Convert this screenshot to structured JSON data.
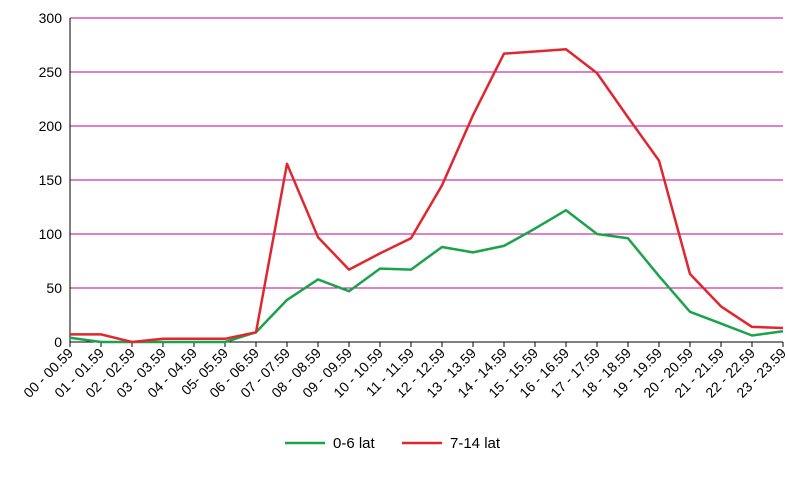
{
  "chart_data": {
    "type": "line",
    "categories": [
      "00 - 00.59",
      "01 - 01.59",
      "02 - 02.59",
      "03 - 03.59",
      "04 - 04.59",
      "05- 05.59",
      "06 - 06.59",
      "07 - 07.59",
      "08 - 08.59",
      "09 - 09.59",
      "10 - 10.59",
      "11 - 11.59",
      "12 - 12.59",
      "13 - 13.59",
      "14 - 14.59",
      "15 - 15.59",
      "16 - 16.59",
      "17 - 17.59",
      "18 - 18.59",
      "19 - 19.59",
      "20 - 20.59",
      "21 - 21.59",
      "22 - 22.59",
      "23 - 23.59"
    ],
    "series": [
      {
        "name": "0-6 lat",
        "color": "#1aa34a",
        "values": [
          4,
          0,
          0,
          0,
          0,
          0,
          9,
          39,
          58,
          47,
          68,
          67,
          88,
          83,
          89,
          105,
          122,
          100,
          96,
          61,
          28,
          17,
          6,
          10
        ]
      },
      {
        "name": "7-14 lat",
        "color": "#e0262f",
        "values": [
          7,
          7,
          0,
          3,
          3,
          3,
          9,
          165,
          97,
          67,
          82,
          96,
          145,
          210,
          267,
          269,
          271,
          249,
          208,
          168,
          63,
          33,
          14,
          13
        ]
      }
    ],
    "ylim": [
      0,
      300
    ],
    "yticks": [
      0,
      50,
      100,
      150,
      200,
      250,
      300
    ],
    "grid": true,
    "gridline_color": "#c0008f",
    "legend_position": "bottom-center",
    "title": "",
    "xlabel": "",
    "ylabel": ""
  }
}
